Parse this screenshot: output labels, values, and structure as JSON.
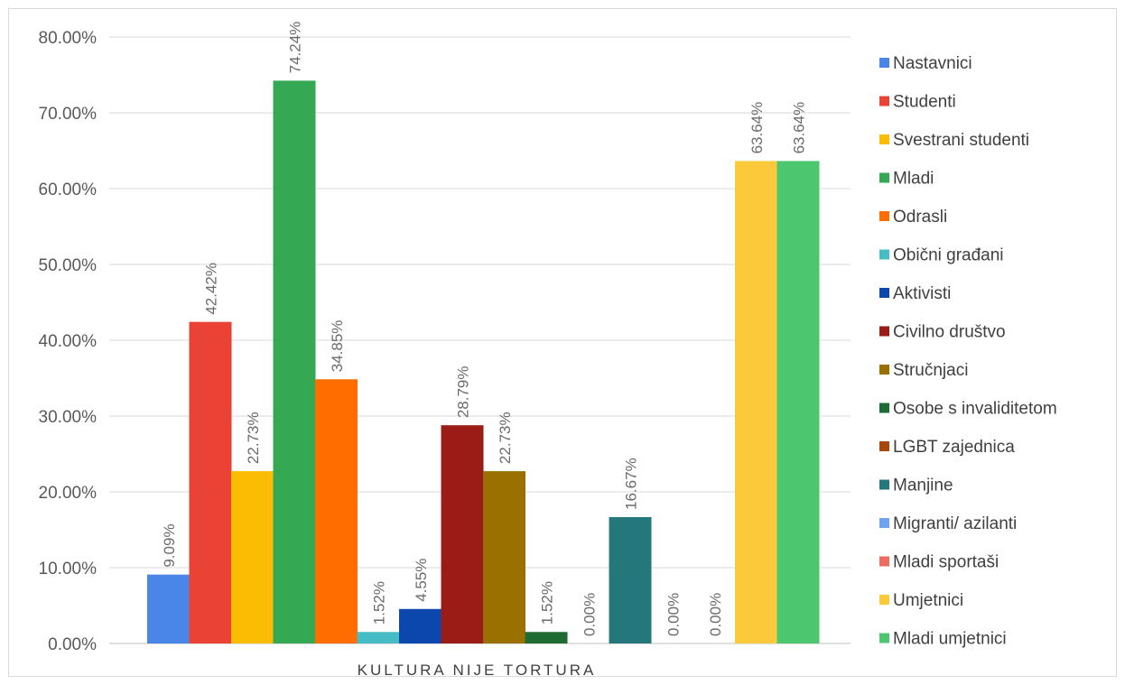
{
  "chart_data": {
    "type": "bar",
    "categories": [
      "KULTURA NIJE TORTURA"
    ],
    "ylim": [
      0,
      80
    ],
    "yticks": [
      "0.00%",
      "10.00%",
      "20.00%",
      "30.00%",
      "40.00%",
      "50.00%",
      "60.00%",
      "70.00%",
      "80.00%"
    ],
    "grid": true,
    "legend_position": "right",
    "series": [
      {
        "name": "Nastavnici",
        "values": [
          9.09
        ],
        "label": "9.09%",
        "color": "#4a86e8"
      },
      {
        "name": "Studenti",
        "values": [
          42.42
        ],
        "label": "42.42%",
        "color": "#ea4335"
      },
      {
        "name": "Svestrani studenti",
        "values": [
          22.73
        ],
        "label": "22.73%",
        "color": "#fbbc04"
      },
      {
        "name": "Mladi",
        "values": [
          74.24
        ],
        "label": "74.24%",
        "color": "#34a853"
      },
      {
        "name": "Odrasli",
        "values": [
          34.85
        ],
        "label": "34.85%",
        "color": "#ff6d01"
      },
      {
        "name": "Obični građani",
        "values": [
          1.52
        ],
        "label": "1.52%",
        "color": "#46bdc6"
      },
      {
        "name": "Aktivisti",
        "values": [
          4.55
        ],
        "label": "4.55%",
        "color": "#0b47ac"
      },
      {
        "name": "Civilno društvo",
        "values": [
          28.79
        ],
        "label": "28.79%",
        "color": "#9b1b16"
      },
      {
        "name": "Stručnjaci",
        "values": [
          22.73
        ],
        "label": "22.73%",
        "color": "#9a7000"
      },
      {
        "name": "Osobe s invaliditetom",
        "values": [
          1.52
        ],
        "label": "1.52%",
        "color": "#1e6b34"
      },
      {
        "name": "LGBT zajednica",
        "values": [
          0.0
        ],
        "label": "0.00%",
        "color": "#a8470a"
      },
      {
        "name": "Manjine",
        "values": [
          16.67
        ],
        "label": "16.67%",
        "color": "#24787b"
      },
      {
        "name": "Migranti/ azilanti",
        "values": [
          0.0
        ],
        "label": "0.00%",
        "color": "#6fa2f0"
      },
      {
        "name": "Mladi sportaši",
        "values": [
          0.0
        ],
        "label": "0.00%",
        "color": "#ef6b62"
      },
      {
        "name": "Umjetnici",
        "values": [
          63.64
        ],
        "label": "63.64%",
        "color": "#fbc93a"
      },
      {
        "name": "Mladi umjetnici",
        "values": [
          63.64
        ],
        "label": "63.64%",
        "color": "#4dc76f"
      }
    ]
  }
}
